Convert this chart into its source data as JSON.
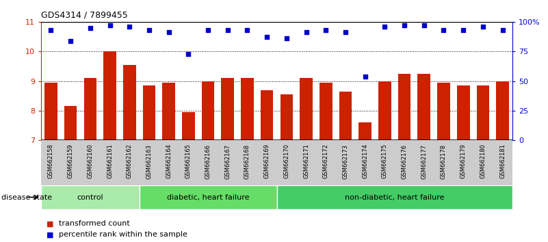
{
  "title": "GDS4314 / 7899455",
  "samples": [
    "GSM662158",
    "GSM662159",
    "GSM662160",
    "GSM662161",
    "GSM662162",
    "GSM662163",
    "GSM662164",
    "GSM662165",
    "GSM662166",
    "GSM662167",
    "GSM662168",
    "GSM662169",
    "GSM662170",
    "GSM662171",
    "GSM662172",
    "GSM662173",
    "GSM662174",
    "GSM662175",
    "GSM662176",
    "GSM662177",
    "GSM662178",
    "GSM662179",
    "GSM662180",
    "GSM662181"
  ],
  "bar_values": [
    8.95,
    8.15,
    9.1,
    10.0,
    9.55,
    8.85,
    8.95,
    7.95,
    9.0,
    9.1,
    9.1,
    8.7,
    8.55,
    9.1,
    8.95,
    8.65,
    7.6,
    9.0,
    9.25,
    9.25,
    8.95,
    8.85,
    8.85,
    9.0
  ],
  "percentile_values": [
    93,
    84,
    95,
    97,
    96,
    93,
    91,
    73,
    93,
    93,
    93,
    87,
    86,
    91,
    93,
    91,
    54,
    96,
    97,
    97,
    93,
    93,
    96,
    93
  ],
  "bar_color": "#cc2200",
  "dot_color": "#0000cc",
  "ylim_left": [
    7,
    11
  ],
  "ylim_right": [
    0,
    100
  ],
  "yticks_left": [
    7,
    8,
    9,
    10,
    11
  ],
  "yticks_right": [
    0,
    25,
    50,
    75,
    100
  ],
  "ytick_labels_right": [
    "0",
    "25",
    "50",
    "75",
    "100%"
  ],
  "grid_values": [
    8,
    9,
    10
  ],
  "groups": [
    {
      "label": "control",
      "start": 0,
      "end": 5,
      "color": "#aaeaaa"
    },
    {
      "label": "diabetic, heart failure",
      "start": 5,
      "end": 12,
      "color": "#66dd66"
    },
    {
      "label": "non-diabetic, heart failure",
      "start": 12,
      "end": 24,
      "color": "#44cc66"
    }
  ],
  "disease_state_label": "disease state",
  "legend_bar_label": "transformed count",
  "legend_dot_label": "percentile rank within the sample",
  "background_color": "#ffffff",
  "tick_bg_color": "#cccccc"
}
